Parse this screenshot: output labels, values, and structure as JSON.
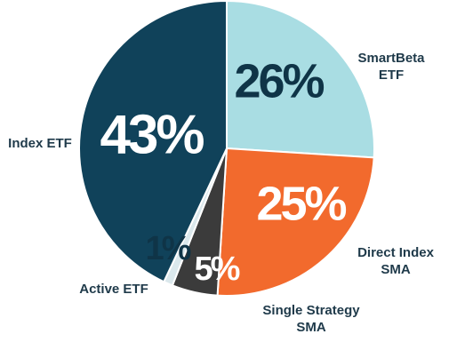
{
  "chart_data": {
    "type": "pie",
    "categories": [
      "SmartBeta ETF",
      "Direct Index SMA",
      "Single Strategy SMA",
      "Active ETF",
      "Index ETF"
    ],
    "values": [
      26,
      25,
      5,
      1,
      43
    ],
    "value_labels": [
      "26%",
      "25%",
      "5%",
      "1%",
      "43%"
    ],
    "colors": [
      "#a9dde3",
      "#f26a2d",
      "#3b3b3b",
      "#dbe8ec",
      "#10425a"
    ]
  }
}
